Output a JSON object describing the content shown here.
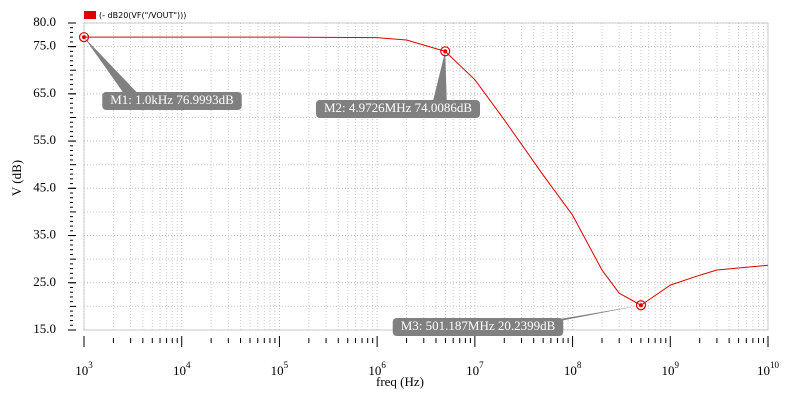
{
  "chart_data": {
    "type": "line",
    "x_label": "freq (Hz)",
    "y_label": "V (dB)",
    "xscale": "log",
    "grid": true,
    "xlim": [
      1000,
      10000000000
    ],
    "ylim": [
      15,
      80
    ],
    "xticks": [
      {
        "value": 1000,
        "label": "10",
        "exponent": "3"
      },
      {
        "value": 10000,
        "label": "10",
        "exponent": "4"
      },
      {
        "value": 100000,
        "label": "10",
        "exponent": "5"
      },
      {
        "value": 1000000,
        "label": "10",
        "exponent": "6"
      },
      {
        "value": 10000000,
        "label": "10",
        "exponent": "7"
      },
      {
        "value": 100000000,
        "label": "10",
        "exponent": "8"
      },
      {
        "value": 1000000000,
        "label": "10",
        "exponent": "9"
      },
      {
        "value": 10000000000,
        "label": "10",
        "exponent": "10"
      }
    ],
    "yticks": [
      {
        "value": 15,
        "label": "15.0"
      },
      {
        "value": 25,
        "label": "25.0"
      },
      {
        "value": 35,
        "label": "35.0"
      },
      {
        "value": 45,
        "label": "45.0"
      },
      {
        "value": 55,
        "label": "55.0"
      },
      {
        "value": 65,
        "label": "65.0"
      },
      {
        "value": 75,
        "label": "75.0"
      },
      {
        "value": 80,
        "label": "80.0"
      }
    ],
    "series": [
      {
        "name": "(- dB20(VF(\"/VOUT\")))",
        "color": "#e00000",
        "x": [
          1000,
          10000,
          100000,
          1000000,
          2000000,
          4972600,
          10000000,
          20000000,
          50000000,
          100000000,
          200000000,
          300000000,
          501187000,
          1000000000,
          2000000000,
          3000000000,
          10000000000
        ],
        "values": [
          77.0,
          77.0,
          77.0,
          76.9,
          76.4,
          74.0,
          68.0,
          59.5,
          47.8,
          39.3,
          27.7,
          22.8,
          20.24,
          24.5,
          26.6,
          27.7,
          28.7
        ]
      }
    ],
    "markers": [
      {
        "label": "M1: 1.0kHz 76.9993dB",
        "x": 1000,
        "y": 76.9993
      },
      {
        "label": "M2: 4.9726MHz 74.0086dB",
        "x": 4972600,
        "y": 74.0086
      },
      {
        "label": "M3: 501.187MHz 20.2399dB",
        "x": 501187000,
        "y": 20.2399
      }
    ]
  }
}
